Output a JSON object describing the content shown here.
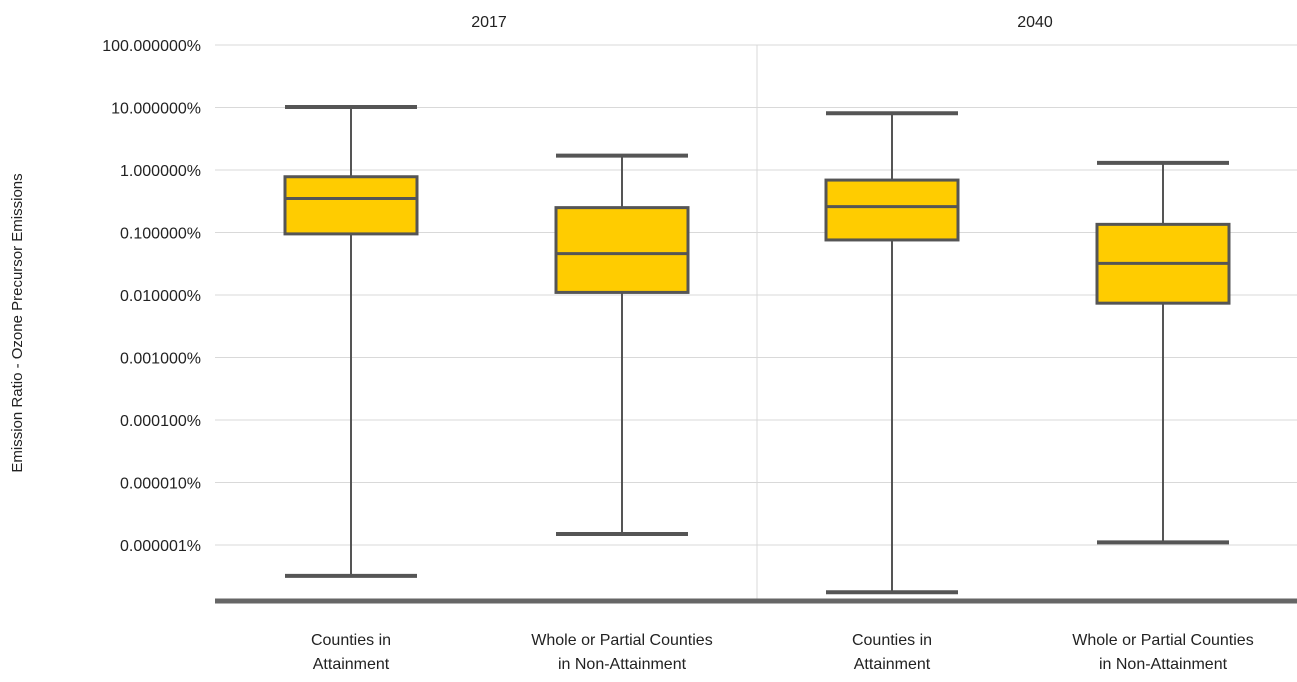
{
  "chart_data": {
    "type": "boxplot",
    "ylabel": "Emission Ratio - Ozone Precursor Emissions",
    "y_scale": "log",
    "y_ticks": [
      {
        "value": 100,
        "label": "100.000000%"
      },
      {
        "value": 10,
        "label": "10.000000%"
      },
      {
        "value": 1,
        "label": "1.000000%"
      },
      {
        "value": 0.1,
        "label": "0.100000%"
      },
      {
        "value": 0.01,
        "label": "0.010000%"
      },
      {
        "value": 0.001,
        "label": "0.001000%"
      },
      {
        "value": 0.0001,
        "label": "0.000100%"
      },
      {
        "value": 1e-05,
        "label": "0.000010%"
      },
      {
        "value": 1e-06,
        "label": "0.000001%"
      }
    ],
    "ylim_percent": [
      2.5e-08,
      100
    ],
    "grid": true,
    "panels": [
      {
        "label": "2017",
        "categories": [
          {
            "label_lines": [
              "Counties in",
              "Attainment"
            ],
            "min": 3.2e-07,
            "q1": 0.095,
            "median": 0.35,
            "q3": 0.78,
            "max": 10.2
          },
          {
            "label_lines": [
              "Whole or Partial Counties",
              "in Non-Attainment"
            ],
            "min": 1.5e-06,
            "q1": 0.011,
            "median": 0.046,
            "q3": 0.25,
            "max": 1.7
          }
        ]
      },
      {
        "label": "2040",
        "categories": [
          {
            "label_lines": [
              "Counties in",
              "Attainment"
            ],
            "min": 1.75e-07,
            "q1": 0.076,
            "median": 0.26,
            "q3": 0.69,
            "max": 8.1
          },
          {
            "label_lines": [
              "Whole or Partial Counties",
              "in Non-Attainment"
            ],
            "min": 1.1e-06,
            "q1": 0.0074,
            "median": 0.032,
            "q3": 0.135,
            "max": 1.3
          }
        ]
      }
    ],
    "colors": {
      "box_fill": "#FFCC00",
      "box_stroke": "#555555",
      "grid": "#D9D9D9",
      "baseline": "#666666"
    }
  }
}
